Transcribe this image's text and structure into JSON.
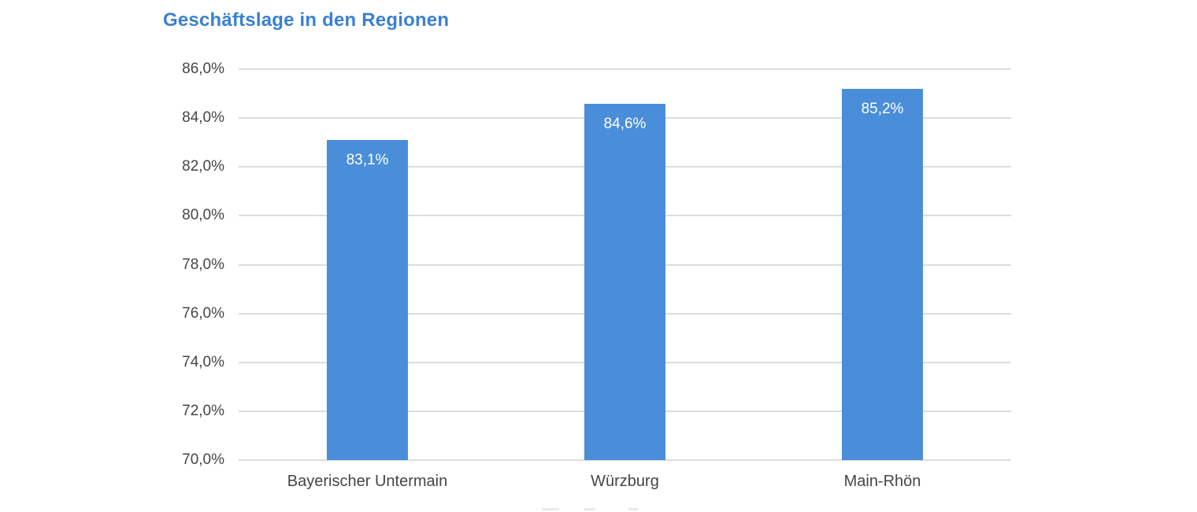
{
  "chart_data": {
    "type": "bar",
    "title": "Geschäftslage in den Regionen",
    "categories": [
      "Bayerischer Untermain",
      "Würzburg",
      "Main-Rhön"
    ],
    "values": [
      83.1,
      84.6,
      85.2
    ],
    "bar_labels": [
      "83,1%",
      "84,6%",
      "85,2%"
    ],
    "xlabel": "",
    "ylabel": "",
    "ylim": [
      70,
      86
    ],
    "ytick_step": 2,
    "ytick_labels": [
      "86,0%",
      "84,0%",
      "82,0%",
      "80,0%",
      "78,0%",
      "76,0%",
      "74,0%",
      "72,0%",
      "70,0%"
    ],
    "grid": true,
    "legend_position": "none",
    "colors": {
      "bar": "#4a8eda",
      "title": "#3a80d2",
      "gridline": "#dcdcdc",
      "axis_text": "#454545",
      "bar_label": "#ffffff",
      "background": "#ffffff"
    }
  }
}
